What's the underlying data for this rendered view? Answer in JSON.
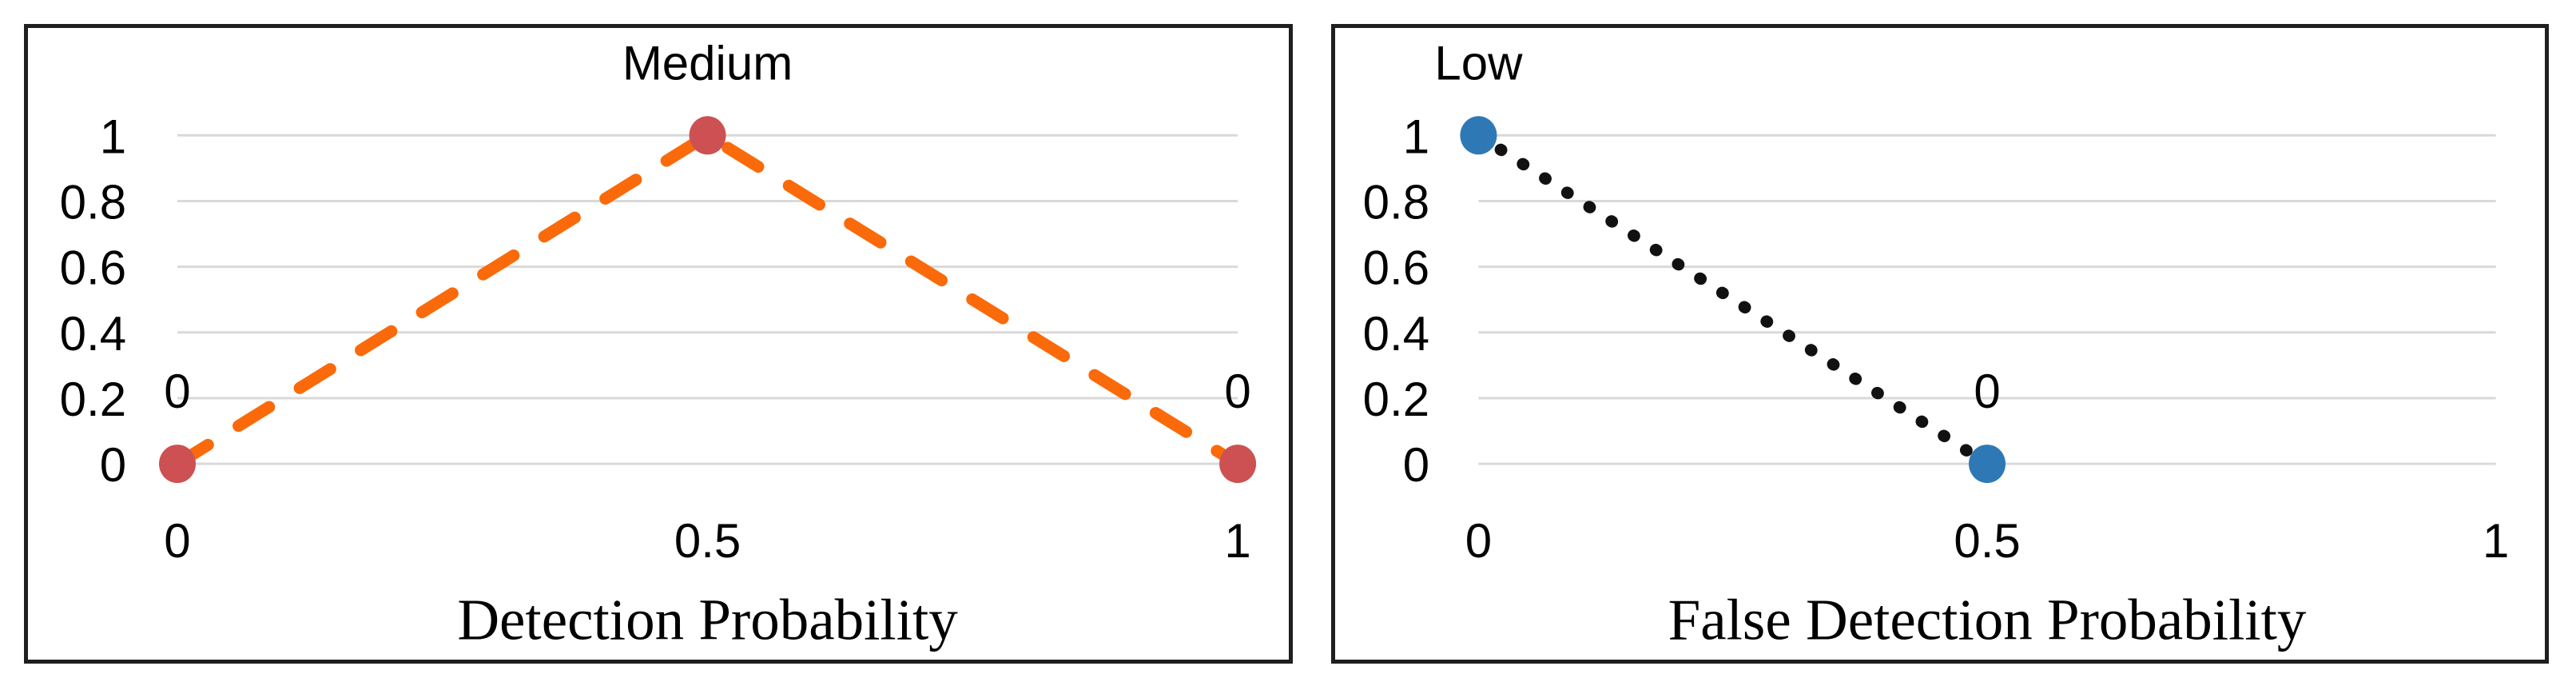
{
  "page": {
    "background": "#ffffff",
    "panel_border_color": "#1f1f1f",
    "grid_color": "#d9d9d9",
    "text_color": "#000000"
  },
  "chart_data": [
    {
      "type": "line",
      "title": "",
      "xlabel": "Detection Probability",
      "ylabel": "",
      "x": [
        0,
        0.5,
        1
      ],
      "y": [
        0,
        1,
        0
      ],
      "point_labels": [
        "0",
        "Medium",
        "0"
      ],
      "x_tick_values": [
        0,
        0.5,
        1
      ],
      "x_tick_labels": [
        "0",
        "0.5",
        "1"
      ],
      "y_tick_values": [
        1,
        0.8,
        0.6,
        0.4,
        0.2,
        0
      ],
      "y_tick_labels": [
        "1",
        "0.8",
        "0.6",
        "0.4",
        "0.2",
        "0"
      ],
      "xlim": [
        0,
        1
      ],
      "ylim": [
        0,
        1
      ],
      "grid": true,
      "legend": "none",
      "line_style": "dashed",
      "line_color": "#fa6a0a",
      "marker_color": "#cd5152",
      "membership_set": "Medium"
    },
    {
      "type": "line",
      "title": "",
      "xlabel": "False Detection Probability",
      "ylabel": "",
      "x": [
        0,
        0.5
      ],
      "y": [
        1,
        0
      ],
      "point_labels": [
        "Low",
        "0"
      ],
      "x_tick_values": [
        0,
        0.5,
        1
      ],
      "x_tick_labels": [
        "0",
        "0.5",
        "1"
      ],
      "y_tick_values": [
        1,
        0.8,
        0.6,
        0.4,
        0.2,
        0
      ],
      "y_tick_labels": [
        "1",
        "0.8",
        "0.6",
        "0.4",
        "0.2",
        "0"
      ],
      "xlim": [
        0,
        1
      ],
      "ylim": [
        0,
        1
      ],
      "grid": true,
      "legend": "none",
      "line_style": "dotted",
      "line_color": "#111111",
      "marker_color": "#2e79b5",
      "membership_set": "Low"
    }
  ]
}
